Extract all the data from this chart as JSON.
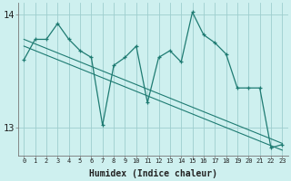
{
  "xlabel": "Humidex (Indice chaleur)",
  "background_color": "#cef0ef",
  "grid_color": "#9ecece",
  "line_color": "#1e7b72",
  "x_values": [
    0,
    1,
    2,
    3,
    4,
    5,
    6,
    7,
    8,
    9,
    10,
    11,
    12,
    13,
    14,
    15,
    16,
    17,
    18,
    19,
    20,
    21,
    22,
    23
  ],
  "y_main": [
    13.6,
    13.78,
    13.78,
    13.92,
    13.78,
    13.68,
    13.62,
    13.02,
    13.55,
    13.62,
    13.72,
    13.22,
    13.62,
    13.68,
    13.58,
    14.02,
    13.82,
    13.75,
    13.65,
    13.35,
    13.35,
    13.35,
    12.82,
    12.85
  ],
  "y_trend1": [
    13.72,
    13.68,
    13.64,
    13.6,
    13.56,
    13.52,
    13.48,
    13.44,
    13.4,
    13.36,
    13.32,
    13.28,
    13.24,
    13.2,
    13.16,
    13.12,
    13.08,
    13.04,
    13.0,
    12.96,
    12.92,
    12.88,
    12.84,
    12.8
  ],
  "y_trend2": [
    13.78,
    13.74,
    13.7,
    13.66,
    13.62,
    13.58,
    13.54,
    13.5,
    13.46,
    13.42,
    13.38,
    13.34,
    13.3,
    13.26,
    13.22,
    13.18,
    13.14,
    13.1,
    13.06,
    13.02,
    12.98,
    12.94,
    12.9,
    12.86
  ],
  "ylim": [
    12.75,
    14.1
  ],
  "xlim": [
    -0.5,
    23.5
  ],
  "yticks": [
    13,
    14
  ],
  "figsize": [
    3.2,
    2.0
  ],
  "dpi": 100
}
